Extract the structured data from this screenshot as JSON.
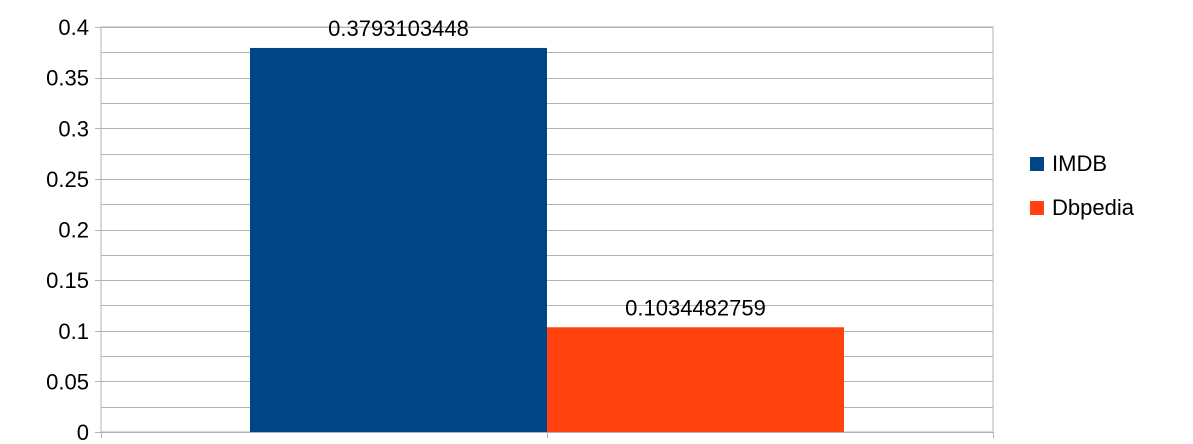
{
  "chart_data": {
    "type": "bar",
    "title": "",
    "xlabel": "",
    "ylabel": "",
    "categories": [
      ""
    ],
    "series": [
      {
        "name": "IMDB",
        "values": [
          0.3793103448
        ],
        "label": "0.3793103448",
        "color": "#004586"
      },
      {
        "name": "Dbpedia",
        "values": [
          0.1034482759
        ],
        "label": "0.1034482759",
        "color": "#ff420e"
      }
    ],
    "ylim": [
      0,
      0.4
    ],
    "y_ticks": [
      0,
      0.05,
      0.1,
      0.15,
      0.2,
      0.25,
      0.3,
      0.35,
      0.4
    ],
    "y_tick_labels": [
      "0",
      "0.05",
      "0.1",
      "0.15",
      "0.2",
      "0.25",
      "0.3",
      "0.35",
      "0.4"
    ],
    "minor_gridlines": true,
    "grid": true,
    "legend_position": "right",
    "gridline_color": "#b3b3b3"
  }
}
